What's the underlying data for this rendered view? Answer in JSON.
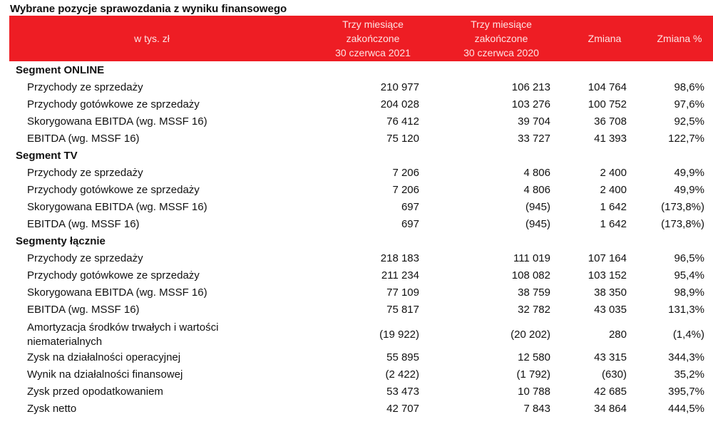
{
  "title": "Wybrane pozycje sprawozdania z wyniku finansowego",
  "header": {
    "unit": "w tys. zł",
    "col1": [
      "Trzy miesiące",
      "zakończone",
      "30 czerwca 2021"
    ],
    "col2": [
      "Trzy miesiące",
      "zakończone",
      "30 czerwca 2020"
    ],
    "col3": "Zmiana",
    "col4": "Zmiana %"
  },
  "sections": [
    {
      "name": "Segment ONLINE",
      "rows": [
        {
          "label": "Przychody ze sprzedaży",
          "v1": "210 977",
          "v2": "106 213",
          "v3": "104 764",
          "v4": "98,6%"
        },
        {
          "label": "Przychody gotówkowe ze sprzedaży",
          "v1": "204 028",
          "v2": "103 276",
          "v3": "100 752",
          "v4": "97,6%"
        },
        {
          "label": "Skorygowana EBITDA (wg. MSSF 16)",
          "v1": "76 412",
          "v2": "39 704",
          "v3": "36 708",
          "v4": "92,5%"
        },
        {
          "label": "EBITDA (wg. MSSF 16)",
          "v1": "75 120",
          "v2": "33 727",
          "v3": "41 393",
          "v4": "122,7%"
        }
      ]
    },
    {
      "name": "Segment TV",
      "rows": [
        {
          "label": "Przychody ze sprzedaży",
          "v1": "7 206",
          "v2": "4 806",
          "v3": "2 400",
          "v4": "49,9%"
        },
        {
          "label": "Przychody gotówkowe ze sprzedaży",
          "v1": "7 206",
          "v2": "4 806",
          "v3": "2 400",
          "v4": "49,9%"
        },
        {
          "label": "Skorygowana EBITDA (wg. MSSF 16)",
          "v1": "697",
          "v2": "(945)",
          "v3": "1 642",
          "v4": "(173,8%)"
        },
        {
          "label": "EBITDA (wg. MSSF 16)",
          "v1": "697",
          "v2": "(945)",
          "v3": "1 642",
          "v4": "(173,8%)"
        }
      ]
    },
    {
      "name": "Segmenty łącznie",
      "rows": [
        {
          "label": "Przychody ze sprzedaży",
          "v1": "218 183",
          "v2": "111 019",
          "v3": "107 164",
          "v4": "96,5%"
        },
        {
          "label": "Przychody gotówkowe ze sprzedaży",
          "v1": "211 234",
          "v2": "108 082",
          "v3": "103 152",
          "v4": "95,4%"
        },
        {
          "label": "Skorygowana EBITDA (wg. MSSF 16)",
          "v1": "77 109",
          "v2": "38 759",
          "v3": "38 350",
          "v4": "98,9%"
        },
        {
          "label": "EBITDA (wg. MSSF 16)",
          "v1": "75 817",
          "v2": "32 782",
          "v3": "43 035",
          "v4": "131,3%"
        },
        {
          "label": "Amortyzacja środków trwałych i wartości niematerialnych",
          "v1": "(19 922)",
          "v2": "(20 202)",
          "v3": "280",
          "v4": "(1,4%)",
          "tall": true
        },
        {
          "label": "Zysk na działalności  operacyjnej",
          "v1": "55 895",
          "v2": "12 580",
          "v3": "43 315",
          "v4": "344,3%"
        },
        {
          "label": "Wynik na działalności  finansowej",
          "v1": "(2 422)",
          "v2": "(1 792)",
          "v3": "(630)",
          "v4": "35,2%"
        },
        {
          "label": "Zysk przed opodatkowaniem",
          "v1": "53 473",
          "v2": "10 788",
          "v3": "42 685",
          "v4": "395,7%"
        },
        {
          "label": "Zysk netto",
          "v1": "42 707",
          "v2": "7 843",
          "v3": "34 864",
          "v4": "444,5%"
        }
      ]
    }
  ]
}
